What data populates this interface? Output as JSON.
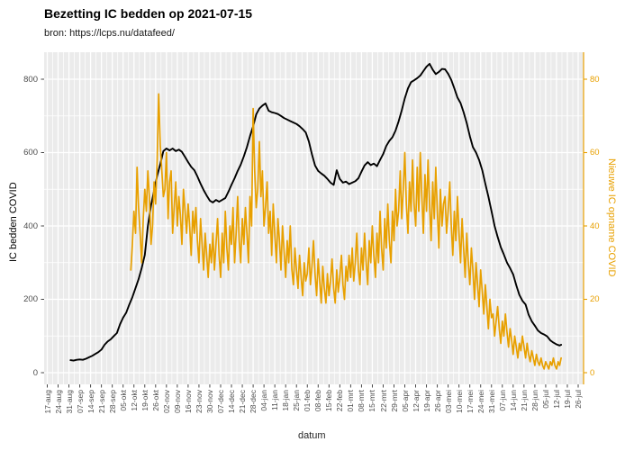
{
  "header": {
    "title": "Bezetting IC bedden op 2021-07-15",
    "subtitle": "bron: https://lcps.nu/datafeed/"
  },
  "colors": {
    "panel_background": "#EBEBEB",
    "gridline": "#FFFFFF",
    "occupancy_line": "#000000",
    "admissions_line": "#E8A000",
    "right_axis": "#E8A000",
    "tick_label": "#4D4D4D",
    "tick_mark": "#333333"
  },
  "chart_data": {
    "type": "line",
    "title": "Bezetting IC bedden op 2021-07-15",
    "subtitle": "bron: https://lcps.nu/datafeed/",
    "xlabel": "datum",
    "ylabel_left": "IC bedden COVID",
    "ylabel_right": "Nieuwe IC opname COVID",
    "legend": "none",
    "grid": "major+minor, white on grey panel",
    "x_axis_day_zero": "2020-08-17",
    "x_tick_interval_days": 7,
    "x_tick_labels": [
      "17-aug",
      "24-aug",
      "31-aug",
      "07-sep",
      "14-sep",
      "21-sep",
      "28-sep",
      "05-okt",
      "12-okt",
      "19-okt",
      "26-okt",
      "02-nov",
      "09-nov",
      "16-nov",
      "23-nov",
      "30-nov",
      "07-dec",
      "14-dec",
      "21-dec",
      "28-dec",
      "04-jan",
      "11-jan",
      "18-jan",
      "25-jan",
      "01-feb",
      "08-feb",
      "15-feb",
      "22-feb",
      "01-mrt",
      "08-mrt",
      "15-mrt",
      "22-mrt",
      "29-mrt",
      "05-apr",
      "12-apr",
      "19-apr",
      "26-apr",
      "03-mei",
      "10-mei",
      "17-mei",
      "24-mei",
      "31-mei",
      "07-jun",
      "14-jun",
      "21-jun",
      "28-jun",
      "05-jul",
      "12-jul",
      "19-jul",
      "26-jul"
    ],
    "y_left_ticks": [
      0,
      200,
      400,
      600,
      800
    ],
    "y_left_minor_ticks": [
      100,
      300,
      500,
      700
    ],
    "y_right_ticks": [
      0,
      20,
      40,
      60,
      80
    ],
    "ylim_left": [
      -30,
      870
    ],
    "ylim_right": [
      -3,
      87
    ],
    "series": [
      {
        "name": "IC bedden COVID (bezetting)",
        "axis": "left",
        "color": "#000000",
        "start_day": 15,
        "step_days": 2,
        "start_date": "2020-09-01",
        "end_date": "2021-07-15",
        "values": [
          34,
          33,
          35,
          36,
          35,
          38,
          42,
          46,
          51,
          56,
          63,
          76,
          85,
          91,
          100,
          108,
          132,
          150,
          164,
          186,
          206,
          231,
          255,
          285,
          321,
          400,
          456,
          496,
          537,
          569,
          604,
          611,
          606,
          611,
          604,
          608,
          602,
          588,
          574,
          561,
          552,
          535,
          515,
          498,
          483,
          469,
          464,
          471,
          466,
          471,
          476,
          493,
          512,
          530,
          550,
          567,
          590,
          615,
          645,
          672,
          704,
          720,
          728,
          734,
          714,
          710,
          708,
          705,
          700,
          694,
          690,
          686,
          682,
          678,
          672,
          664,
          655,
          630,
          595,
          565,
          550,
          543,
          537,
          528,
          518,
          512,
          552,
          528,
          518,
          521,
          514,
          518,
          522,
          530,
          548,
          565,
          574,
          566,
          570,
          563,
          580,
          596,
          618,
          632,
          642,
          660,
          685,
          715,
          748,
          775,
          792,
          797,
          803,
          810,
          822,
          834,
          842,
          826,
          814,
          820,
          828,
          827,
          815,
          798,
          775,
          750,
          735,
          710,
          680,
          645,
          615,
          600,
          580,
          552,
          515,
          480,
          440,
          400,
          370,
          342,
          322,
          300,
          285,
          268,
          238,
          212,
          196,
          186,
          158,
          140,
          128,
          115,
          108,
          104,
          99,
          88,
          82,
          77,
          74,
          76
        ]
      },
      {
        "name": "Nieuwe IC opname COVID",
        "axis": "right",
        "color": "#E8A000",
        "start_day": 54,
        "step_days": 1,
        "start_date": "2020-10-10",
        "end_date": "2021-07-15",
        "values": [
          28,
          35,
          44,
          38,
          56,
          45,
          38,
          30,
          42,
          50,
          44,
          55,
          48,
          35,
          40,
          52,
          46,
          58,
          76,
          62,
          55,
          48,
          50,
          60,
          42,
          52,
          55,
          38,
          45,
          52,
          40,
          48,
          43,
          35,
          50,
          44,
          38,
          46,
          40,
          32,
          44,
          38,
          45,
          36,
          30,
          42,
          35,
          28,
          38,
          32,
          26,
          35,
          30,
          38,
          28,
          35,
          42,
          32,
          26,
          38,
          30,
          44,
          34,
          28,
          40,
          35,
          45,
          30,
          38,
          48,
          36,
          30,
          42,
          35,
          45,
          38,
          30,
          48,
          40,
          72,
          55,
          45,
          50,
          63,
          48,
          55,
          40,
          45,
          52,
          38,
          44,
          32,
          46,
          38,
          30,
          42,
          36,
          28,
          40,
          33,
          26,
          36,
          30,
          40,
          28,
          24,
          34,
          28,
          23,
          32,
          26,
          21,
          30,
          25,
          27,
          34,
          24,
          29,
          36,
          27,
          21,
          31,
          25,
          19,
          29,
          23,
          19,
          27,
          21,
          25,
          31,
          23,
          19,
          28,
          22,
          26,
          32,
          24,
          20,
          29,
          25,
          32,
          26,
          34,
          25,
          30,
          38,
          28,
          24,
          34,
          28,
          38,
          30,
          24,
          36,
          30,
          40,
          32,
          26,
          38,
          30,
          44,
          34,
          28,
          42,
          34,
          46,
          36,
          30,
          44,
          36,
          50,
          40,
          44,
          55,
          42,
          50,
          60,
          46,
          38,
          52,
          44,
          58,
          46,
          40,
          56,
          44,
          60,
          48,
          38,
          54,
          44,
          58,
          46,
          36,
          52,
          42,
          56,
          44,
          34,
          50,
          40,
          46,
          48,
          38,
          44,
          52,
          40,
          32,
          44,
          36,
          48,
          38,
          30,
          42,
          34,
          26,
          38,
          30,
          24,
          34,
          28,
          20,
          30,
          24,
          18,
          28,
          22,
          16,
          24,
          18,
          12,
          20,
          15,
          16,
          10,
          14,
          18,
          12,
          8,
          14,
          10,
          16,
          11,
          7,
          12,
          9,
          5,
          10,
          7,
          4,
          8,
          6,
          10,
          7,
          4,
          8,
          5,
          3,
          6,
          4,
          2,
          5,
          3,
          2,
          4,
          2,
          1,
          3,
          2,
          1,
          3,
          2,
          4,
          2,
          1,
          3,
          2,
          4
        ]
      }
    ]
  }
}
